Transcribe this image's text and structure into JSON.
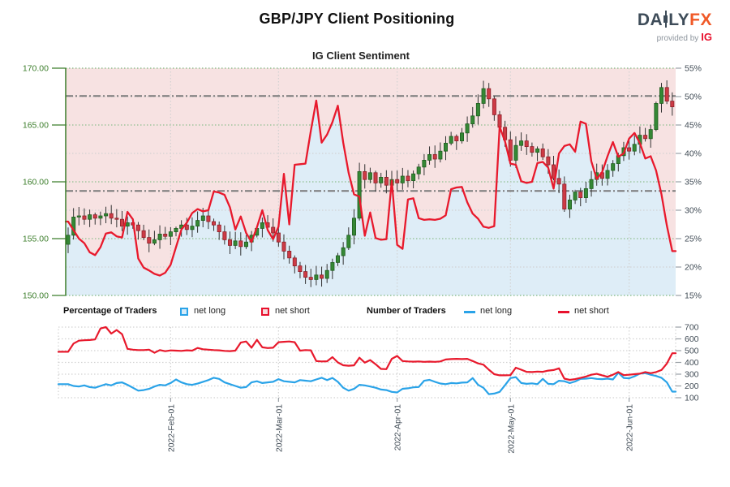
{
  "header": {
    "title": "GBP/JPY Client Positioning",
    "subtitle": "IG Client Sentiment",
    "logo": {
      "name_left": "DA",
      "name_right": "LY",
      "name_accent": "FX",
      "provided_by": "provided by",
      "provider": "IG"
    }
  },
  "legend": {
    "percent_label": "Percentage of Traders",
    "percent_long": "net long",
    "percent_short": "net short",
    "count_label": "Number of Traders",
    "count_long": "net long",
    "count_short": "net short"
  },
  "colors": {
    "sentiment_red": "#e8192c",
    "net_long_blue": "#2aa3e8",
    "candle_up": "#358835",
    "candle_up_border": "#205e20",
    "candle_down": "#cd3b45",
    "candle_down_border": "#8f1f29",
    "wick": "#333333",
    "fill_above_short_line": "#f7e2e2",
    "fill_below_short_line": "#deedf7",
    "axis_green": "#3b7d2a",
    "axis_slate": "#3f4a54",
    "grid_green": "#8fbf8f",
    "grid_gray": "#d2d2d2",
    "border_green": "#7fb77f",
    "refline_gray": "#7a7a7a"
  },
  "chart_data": [
    {
      "type": "candlestick+line",
      "title": "IG Client Sentiment",
      "price_axis": {
        "labels": [
          "170.00",
          "165.00",
          "160.00",
          "155.00",
          "150.00"
        ],
        "values": [
          170,
          165,
          160,
          155,
          150
        ],
        "range": [
          150,
          170
        ]
      },
      "pct_axis": {
        "labels": [
          "55%",
          "50%",
          "45%",
          "40%",
          "35%",
          "30%",
          "25%",
          "20%",
          "15%"
        ],
        "values": [
          55,
          50,
          45,
          40,
          35,
          30,
          25,
          20,
          15
        ],
        "range": [
          15,
          55
        ],
        "green_grid_values": [
          45,
          35,
          25
        ],
        "gray_grid_values": [
          50,
          40,
          30,
          20
        ]
      },
      "date_axis": [
        {
          "label": "2022-Feb-01",
          "i": 19
        },
        {
          "label": "2022-Mar-01",
          "i": 39
        },
        {
          "label": "2022-Apr-01",
          "i": 61
        },
        {
          "label": "2022-May-01",
          "i": 82
        },
        {
          "label": "2022-Jun-01",
          "i": 104
        }
      ],
      "reference_lines_pct": [
        50.1,
        33.4
      ],
      "closes": [
        155.3,
        156.9,
        157.0,
        156.7,
        157.1,
        156.8,
        157.0,
        157.2,
        156.8,
        156.7,
        156.1,
        156.4,
        156.2,
        155.7,
        155.1,
        154.6,
        154.9,
        155.4,
        155.2,
        155.6,
        155.9,
        156.2,
        155.8,
        156.1,
        156.6,
        157.0,
        156.5,
        156.2,
        155.6,
        154.9,
        154.4,
        154.8,
        154.3,
        154.7,
        155.3,
        155.9,
        156.4,
        156.0,
        155.5,
        154.7,
        153.9,
        153.3,
        152.6,
        152.1,
        151.6,
        151.4,
        151.8,
        151.5,
        152.2,
        152.9,
        153.5,
        154.2,
        155.3,
        156.8,
        160.9,
        160.2,
        160.8,
        159.9,
        160.4,
        159.7,
        160.2,
        159.9,
        160.5,
        160.1,
        160.7,
        161.3,
        161.9,
        162.4,
        162.0,
        162.7,
        163.4,
        164.0,
        163.6,
        164.3,
        165.1,
        165.8,
        166.9,
        168.2,
        167.3,
        165.9,
        164.8,
        163.7,
        161.9,
        163.2,
        163.6,
        163.1,
        162.6,
        162.9,
        162.2,
        161.5,
        160.3,
        159.8,
        157.6,
        158.4,
        159.1,
        158.6,
        159.4,
        160.2,
        160.8,
        160.3,
        161.0,
        161.6,
        162.3,
        163.0,
        162.7,
        163.3,
        164.1,
        163.8,
        164.6,
        166.9,
        168.3,
        167.1,
        166.6
      ],
      "sentiment_pct": [
        28.0,
        26.5,
        25.0,
        24.2,
        22.6,
        22.1,
        23.5,
        25.9,
        26.1,
        25.4,
        25.2,
        29.7,
        28.4,
        21.5,
        19.9,
        19.4,
        18.8,
        18.5,
        19.0,
        20.4,
        23.5,
        26.6,
        27.8,
        29.5,
        30.2,
        29.8,
        30.0,
        33.3,
        33.1,
        32.7,
        30.5,
        26.6,
        28.9,
        26.0,
        24.4,
        27.0,
        30.0,
        26.5,
        24.9,
        27.1,
        36.4,
        27.5,
        38.0,
        38.1,
        38.2,
        44.0,
        49.3,
        41.9,
        43.3,
        45.5,
        48.4,
        41.9,
        36.6,
        32.8,
        32.4,
        25.5,
        29.6,
        25.1,
        24.8,
        24.9,
        35.2,
        23.9,
        23.2,
        31.9,
        32.1,
        28.6,
        28.3,
        28.4,
        28.3,
        28.5,
        29.1,
        33.7,
        34.0,
        34.1,
        31.4,
        29.4,
        28.5,
        27.1,
        26.9,
        27.2,
        44.7,
        42.1,
        38.2,
        38.0,
        35.1,
        34.8,
        35.0,
        38.3,
        38.5,
        37.5,
        33.8,
        40.0,
        41.3,
        41.6,
        40.3,
        45.6,
        45.2,
        38.6,
        35.5,
        36.7,
        39.5,
        42.0,
        39.4,
        40.0,
        42.6,
        43.6,
        41.8,
        39.1,
        39.5,
        37.0,
        32.8,
        27.3,
        22.8
      ]
    },
    {
      "type": "line",
      "count_axis": {
        "labels": [
          "700",
          "600",
          "500",
          "400",
          "300",
          "200",
          "100"
        ],
        "values": [
          700,
          600,
          500,
          400,
          300,
          200,
          100
        ],
        "range": [
          100,
          700
        ]
      },
      "series": [
        {
          "name": "net long",
          "color_key": "net_long_blue",
          "values": [
            215,
            200,
            195,
            205,
            190,
            185,
            200,
            215,
            205,
            225,
            230,
            210,
            185,
            160,
            165,
            175,
            195,
            210,
            205,
            225,
            255,
            230,
            215,
            210,
            220,
            235,
            250,
            270,
            260,
            230,
            215,
            200,
            185,
            190,
            230,
            240,
            225,
            230,
            235,
            258,
            240,
            235,
            230,
            250,
            245,
            240,
            255,
            270,
            250,
            268,
            235,
            185,
            160,
            175,
            210,
            205,
            195,
            185,
            170,
            165,
            150,
            145,
            176,
            180,
            188,
            191,
            244,
            252,
            235,
            221,
            215,
            225,
            222,
            228,
            230,
            267,
            210,
            184,
            130,
            135,
            150,
            206,
            267,
            275,
            225,
            218,
            222,
            215,
            260,
            218,
            215,
            244,
            240,
            225,
            238,
            260,
            262,
            267,
            260,
            258,
            262,
            255,
            312,
            268,
            265,
            282,
            305,
            310,
            295,
            285,
            270,
            230,
            152
          ]
        },
        {
          "name": "net short",
          "color_key": "sentiment_red",
          "values": [
            490,
            560,
            585,
            588,
            590,
            595,
            688,
            700,
            645,
            675,
            640,
            515,
            508,
            505,
            505,
            508,
            482,
            505,
            495,
            502,
            500,
            498,
            503,
            500,
            523,
            512,
            508,
            505,
            503,
            498,
            496,
            500,
            568,
            578,
            525,
            592,
            528,
            522,
            525,
            572,
            575,
            578,
            572,
            500,
            505,
            503,
            412,
            408,
            410,
            445,
            400,
            376,
            372,
            375,
            440,
            398,
            420,
            385,
            345,
            343,
            430,
            455,
            412,
            408,
            406,
            408,
            405,
            407,
            405,
            408,
            425,
            428,
            430,
            428,
            430,
            412,
            392,
            381,
            338,
            300,
            290,
            290,
            292,
            355,
            338,
            320,
            318,
            322,
            320,
            330,
            335,
            350,
            262,
            252,
            258,
            268,
            280,
            295,
            303,
            290,
            278,
            295,
            318,
            292,
            295,
            300,
            305,
            318,
            308,
            318,
            335,
            390,
            478
          ]
        }
      ]
    }
  ]
}
